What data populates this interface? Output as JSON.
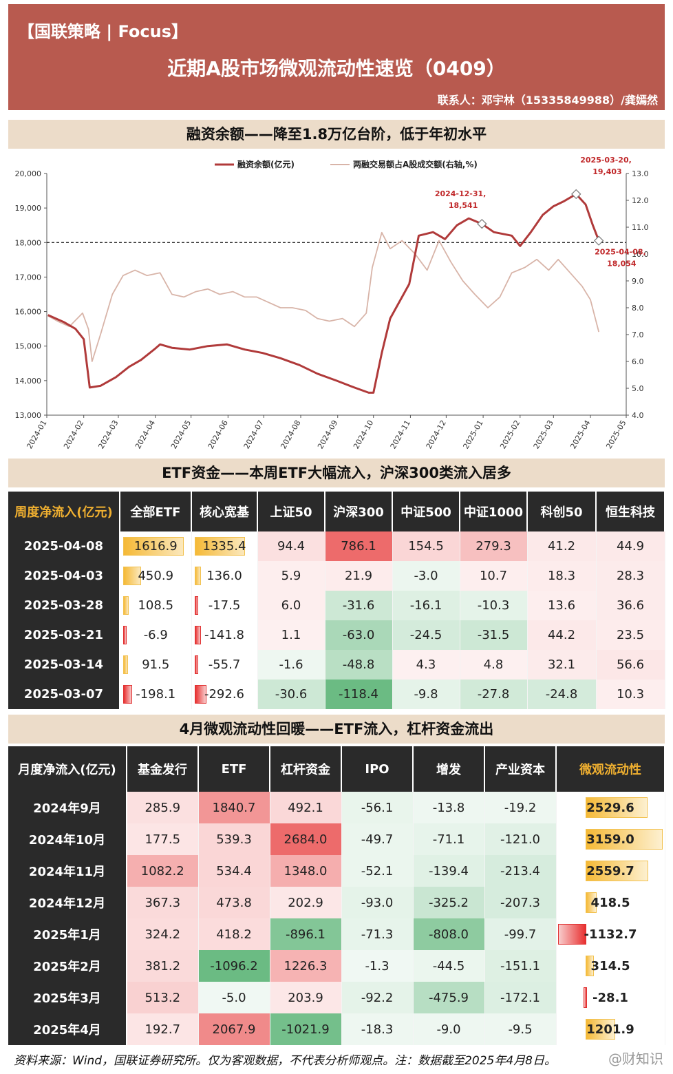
{
  "header": {
    "tag": "【国联策略 | Focus】",
    "title": "近期A股市场微观流动性速览（0409）",
    "contact": "联系人：邓宇林（15335849988）/龚嫣然"
  },
  "section1": {
    "title": "融资余额——降至1.8万亿台阶，低于年初水平"
  },
  "section2": {
    "title": "ETF资金——本周ETF大幅流入，沪深300类流入居多"
  },
  "section3": {
    "title": "4月微观流动性回暖——ETF流入，杠杆资金流出"
  },
  "chart_data": {
    "type": "line",
    "legend": [
      "融资余额(亿元)",
      "两融交易额占A股成交额(右轴,%)"
    ],
    "x_ticks": [
      "2024-01",
      "2024-02",
      "2024-03",
      "2024-04",
      "2024-05",
      "2024-06",
      "2024-07",
      "2024-08",
      "2024-09",
      "2024-10",
      "2024-11",
      "2024-12",
      "2025-01",
      "2025-02",
      "2025-03",
      "2025-04",
      "2025-05"
    ],
    "y_left_ticks": [
      "13,000",
      "14,000",
      "15,000",
      "16,000",
      "17,000",
      "18,000",
      "19,000",
      "20,000"
    ],
    "y_right_ticks": [
      "4.0",
      "5.0",
      "6.0",
      "7.0",
      "8.0",
      "9.0",
      "10.0",
      "11.0",
      "12.0",
      "13.0"
    ],
    "ylim_left": [
      13000,
      20000
    ],
    "ylim_right": [
      4.0,
      13.0
    ],
    "reference_line": 18000,
    "series": [
      {
        "name": "融资余额(亿元)",
        "color": "#b03a3a",
        "axis": "left",
        "points": [
          [
            "2024-01-02",
            15900
          ],
          [
            "2024-01-15",
            15700
          ],
          [
            "2024-01-25",
            15500
          ],
          [
            "2024-02-01",
            15200
          ],
          [
            "2024-02-06",
            13800
          ],
          [
            "2024-02-15",
            13850
          ],
          [
            "2024-02-28",
            14100
          ],
          [
            "2024-03-10",
            14400
          ],
          [
            "2024-03-20",
            14600
          ],
          [
            "2024-03-31",
            14900
          ],
          [
            "2024-04-05",
            15050
          ],
          [
            "2024-04-15",
            14950
          ],
          [
            "2024-04-30",
            14900
          ],
          [
            "2024-05-15",
            15000
          ],
          [
            "2024-05-31",
            15050
          ],
          [
            "2024-06-15",
            14900
          ],
          [
            "2024-06-30",
            14800
          ],
          [
            "2024-07-15",
            14650
          ],
          [
            "2024-07-31",
            14450
          ],
          [
            "2024-08-15",
            14200
          ],
          [
            "2024-08-31",
            14000
          ],
          [
            "2024-09-15",
            13800
          ],
          [
            "2024-09-27",
            13650
          ],
          [
            "2024-10-01",
            13650
          ],
          [
            "2024-10-08",
            14800
          ],
          [
            "2024-10-15",
            15800
          ],
          [
            "2024-10-31",
            16800
          ],
          [
            "2024-11-08",
            18200
          ],
          [
            "2024-11-20",
            18300
          ],
          [
            "2024-11-30",
            18100
          ],
          [
            "2024-12-10",
            18500
          ],
          [
            "2024-12-20",
            18700
          ],
          [
            "2024-12-31",
            18541
          ],
          [
            "2025-01-10",
            18300
          ],
          [
            "2025-01-25",
            18200
          ],
          [
            "2025-02-01",
            17900
          ],
          [
            "2025-02-10",
            18300
          ],
          [
            "2025-02-20",
            18800
          ],
          [
            "2025-03-01",
            19050
          ],
          [
            "2025-03-10",
            19200
          ],
          [
            "2025-03-20",
            19403
          ],
          [
            "2025-03-28",
            19100
          ],
          [
            "2025-04-03",
            18500
          ],
          [
            "2025-04-08",
            18054
          ]
        ]
      },
      {
        "name": "两融交易额占A股成交额(右轴,%)",
        "color": "#d8b4a8",
        "axis": "right",
        "points": [
          [
            "2024-01-02",
            7.7
          ],
          [
            "2024-01-10",
            7.5
          ],
          [
            "2024-01-20",
            7.3
          ],
          [
            "2024-01-31",
            7.8
          ],
          [
            "2024-02-05",
            7.2
          ],
          [
            "2024-02-08",
            6.0
          ],
          [
            "2024-02-15",
            7.0
          ],
          [
            "2024-02-25",
            8.5
          ],
          [
            "2024-03-05",
            9.2
          ],
          [
            "2024-03-15",
            9.4
          ],
          [
            "2024-03-25",
            9.2
          ],
          [
            "2024-04-05",
            9.3
          ],
          [
            "2024-04-15",
            8.5
          ],
          [
            "2024-04-25",
            8.4
          ],
          [
            "2024-05-05",
            8.6
          ],
          [
            "2024-05-15",
            8.7
          ],
          [
            "2024-05-25",
            8.5
          ],
          [
            "2024-06-05",
            8.6
          ],
          [
            "2024-06-15",
            8.4
          ],
          [
            "2024-06-25",
            8.4
          ],
          [
            "2024-07-05",
            8.2
          ],
          [
            "2024-07-15",
            8.0
          ],
          [
            "2024-07-25",
            8.0
          ],
          [
            "2024-08-05",
            7.9
          ],
          [
            "2024-08-15",
            7.6
          ],
          [
            "2024-08-25",
            7.5
          ],
          [
            "2024-09-05",
            7.6
          ],
          [
            "2024-09-15",
            7.3
          ],
          [
            "2024-09-25",
            7.8
          ],
          [
            "2024-09-30",
            9.5
          ],
          [
            "2024-10-08",
            10.8
          ],
          [
            "2024-10-15",
            10.2
          ],
          [
            "2024-10-25",
            10.5
          ],
          [
            "2024-11-05",
            10.0
          ],
          [
            "2024-11-15",
            9.4
          ],
          [
            "2024-11-25",
            10.5
          ],
          [
            "2024-12-05",
            9.7
          ],
          [
            "2024-12-15",
            9.0
          ],
          [
            "2024-12-25",
            8.5
          ],
          [
            "2025-01-05",
            8.0
          ],
          [
            "2025-01-15",
            8.4
          ],
          [
            "2025-01-25",
            9.3
          ],
          [
            "2025-02-05",
            9.5
          ],
          [
            "2025-02-15",
            9.8
          ],
          [
            "2025-02-25",
            9.4
          ],
          [
            "2025-03-05",
            9.8
          ],
          [
            "2025-03-15",
            9.3
          ],
          [
            "2025-03-25",
            8.8
          ],
          [
            "2025-04-01",
            8.3
          ],
          [
            "2025-04-08",
            7.1
          ]
        ]
      }
    ],
    "annotations": [
      {
        "date": "2024-12-31",
        "value": 18541,
        "label1": "2024-12-31,",
        "label2": "18,541"
      },
      {
        "date": "2025-03-20",
        "value": 19403,
        "label1": "2025-03-20,",
        "label2": "19,403"
      },
      {
        "date": "2025-04-08",
        "value": 18054,
        "label1": "2025-04-08,",
        "label2": "18,054"
      }
    ]
  },
  "etf_table": {
    "corner": "周度净流入(亿元)",
    "headers": [
      "全部ETF",
      "核心宽基",
      "上证50",
      "沪深300",
      "中证500",
      "中证1000",
      "科创50",
      "恒生科技"
    ],
    "rows": [
      {
        "date": "2025-04-08",
        "values": [
          "1616.9",
          "1335.4",
          "94.4",
          "786.1",
          "154.5",
          "279.3",
          "41.2",
          "44.9"
        ]
      },
      {
        "date": "2025-04-03",
        "values": [
          "450.9",
          "136.0",
          "5.9",
          "21.9",
          "-3.0",
          "10.7",
          "18.3",
          "28.3"
        ]
      },
      {
        "date": "2025-03-28",
        "values": [
          "108.5",
          "-17.5",
          "6.0",
          "-31.6",
          "-16.1",
          "-10.3",
          "13.6",
          "36.6"
        ]
      },
      {
        "date": "2025-03-21",
        "values": [
          "-6.9",
          "-141.8",
          "1.1",
          "-63.0",
          "-24.5",
          "-31.5",
          "44.2",
          "23.5"
        ]
      },
      {
        "date": "2025-03-14",
        "values": [
          "91.5",
          "-55.7",
          "-1.6",
          "-48.8",
          "4.3",
          "4.8",
          "32.1",
          "56.6"
        ]
      },
      {
        "date": "2025-03-07",
        "values": [
          "-198.1",
          "-292.6",
          "-30.6",
          "-118.4",
          "-9.8",
          "-27.8",
          "-24.8",
          "10.3"
        ]
      }
    ]
  },
  "month_table": {
    "corner": "月度净流入(亿元)",
    "headers": [
      "基金发行",
      "ETF",
      "杠杆资金",
      "IPO",
      "增发",
      "产业资本",
      "微观流动性"
    ],
    "rows": [
      {
        "month": "2024年9月",
        "values": [
          "285.9",
          "1840.7",
          "492.1",
          "-56.1",
          "-13.8",
          "-19.2",
          "2529.6"
        ]
      },
      {
        "month": "2024年10月",
        "values": [
          "177.5",
          "539.3",
          "2684.0",
          "-49.7",
          "-71.1",
          "-121.0",
          "3159.0"
        ]
      },
      {
        "month": "2024年11月",
        "values": [
          "1082.2",
          "534.4",
          "1348.0",
          "-52.1",
          "-139.4",
          "-213.4",
          "2559.7"
        ]
      },
      {
        "month": "2024年12月",
        "values": [
          "367.3",
          "473.8",
          "202.9",
          "-93.0",
          "-325.2",
          "-207.3",
          "418.5"
        ]
      },
      {
        "month": "2025年1月",
        "values": [
          "324.2",
          "418.2",
          "-896.1",
          "-71.3",
          "-808.0",
          "-99.7",
          "-1132.7"
        ]
      },
      {
        "month": "2025年2月",
        "values": [
          "381.2",
          "-1096.2",
          "1226.3",
          "-1.3",
          "-44.5",
          "-151.1",
          "314.5"
        ]
      },
      {
        "month": "2025年3月",
        "values": [
          "513.2",
          "-5.0",
          "203.9",
          "-92.2",
          "-475.9",
          "-172.1",
          "-28.1"
        ]
      },
      {
        "month": "2025年4月",
        "values": [
          "192.7",
          "2067.9",
          "-1021.9",
          "-18.3",
          "-9.0",
          "-9.5",
          "1201.9"
        ]
      }
    ]
  },
  "footer": {
    "source": "资料来源：Wind，国联证券研究所。仅为客观数据，不代表分析师观点。注：数据截至2025年4月8日。",
    "watermark": "@财知识"
  }
}
